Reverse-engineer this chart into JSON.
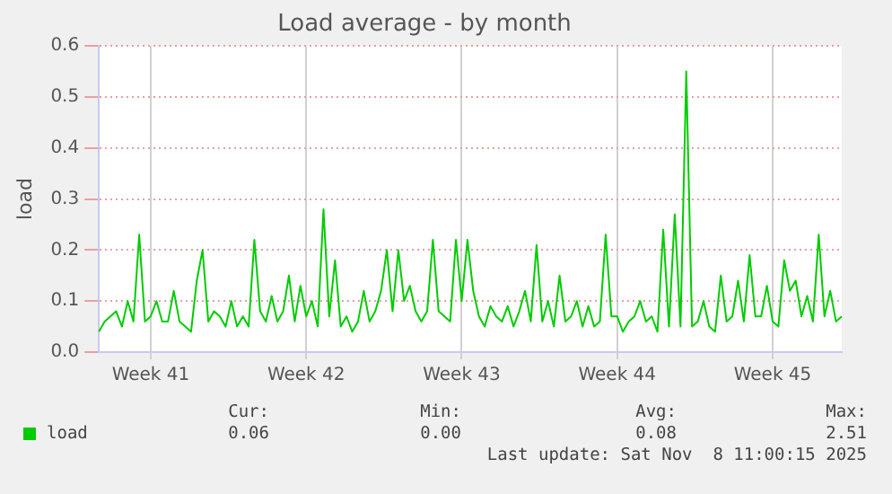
{
  "chart_data": {
    "type": "line",
    "title": "Load average - by month",
    "ylabel": "load",
    "categories": [
      null,
      null,
      null,
      null,
      null,
      null,
      null,
      null,
      null,
      "Week 41",
      null,
      null,
      null,
      null,
      null,
      null,
      null,
      null,
      null,
      null,
      null,
      null,
      null,
      null,
      null,
      null,
      null,
      null,
      null,
      null,
      null,
      null,
      null,
      null,
      null,
      null,
      "Week 42",
      null,
      null,
      null,
      null,
      null,
      null,
      null,
      null,
      null,
      null,
      null,
      null,
      null,
      null,
      null,
      null,
      null,
      null,
      null,
      null,
      null,
      null,
      null,
      null,
      null,
      null,
      "Week 43",
      null,
      null,
      null,
      null,
      null,
      null,
      null,
      null,
      null,
      null,
      null,
      null,
      null,
      null,
      null,
      null,
      null,
      null,
      null,
      null,
      null,
      null,
      null,
      null,
      null,
      null,
      "Week 44",
      null,
      null,
      null,
      null,
      null,
      null,
      null,
      null,
      null,
      null,
      null,
      null,
      null,
      null,
      null,
      null,
      null,
      null,
      null,
      null,
      null,
      null,
      null,
      null,
      null,
      null,
      "Week 45",
      null,
      null,
      null,
      null,
      null,
      null,
      null,
      null,
      null,
      null,
      null,
      null
    ],
    "series": [
      {
        "name": "load",
        "color": "#00cc00",
        "values": [
          0.04,
          0.06,
          0.07,
          0.08,
          0.05,
          0.1,
          0.06,
          0.23,
          0.06,
          0.07,
          0.1,
          0.06,
          0.06,
          0.12,
          0.06,
          0.05,
          0.04,
          0.14,
          0.2,
          0.06,
          0.08,
          0.07,
          0.05,
          0.1,
          0.05,
          0.07,
          0.05,
          0.22,
          0.08,
          0.06,
          0.11,
          0.06,
          0.08,
          0.15,
          0.06,
          0.13,
          0.07,
          0.1,
          0.05,
          0.28,
          0.07,
          0.18,
          0.05,
          0.07,
          0.04,
          0.06,
          0.12,
          0.06,
          0.08,
          0.12,
          0.2,
          0.08,
          0.2,
          0.1,
          0.13,
          0.08,
          0.06,
          0.08,
          0.22,
          0.08,
          0.07,
          0.06,
          0.22,
          0.1,
          0.22,
          0.12,
          0.07,
          0.05,
          0.09,
          0.07,
          0.06,
          0.09,
          0.05,
          0.08,
          0.12,
          0.06,
          0.21,
          0.06,
          0.1,
          0.05,
          0.15,
          0.06,
          0.07,
          0.1,
          0.05,
          0.09,
          0.05,
          0.06,
          0.23,
          0.07,
          0.07,
          0.04,
          0.06,
          0.07,
          0.1,
          0.06,
          0.07,
          0.04,
          0.24,
          0.05,
          0.27,
          0.05,
          0.55,
          0.05,
          0.06,
          0.1,
          0.05,
          0.04,
          0.15,
          0.06,
          0.07,
          0.14,
          0.06,
          0.19,
          0.07,
          0.07,
          0.13,
          0.06,
          0.05,
          0.18,
          0.12,
          0.14,
          0.07,
          0.11,
          0.06,
          0.23,
          0.07,
          0.12,
          0.06,
          0.07
        ]
      }
    ],
    "ylim": [
      0,
      0.6
    ],
    "yticks": [
      {
        "value": 0,
        "label": "0.0"
      },
      0.1,
      0.2,
      0.3,
      0.4,
      0.5,
      0.6
    ],
    "grid": true,
    "legend": "bottom",
    "marker": "none",
    "line_style": "solid",
    "annotations": [
      "Cur:",
      "Min:",
      "Avg:",
      "Max:",
      "0.06",
      "0.00",
      "0.08",
      "2.51",
      "Last update: Sat Nov  8 11:00:15 2025"
    ]
  }
}
